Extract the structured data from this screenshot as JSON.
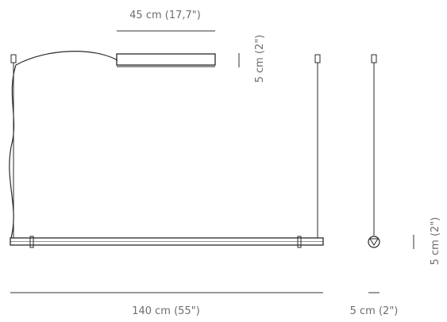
{
  "dimensions": {
    "canopy_width": "45 cm (17,7\")",
    "canopy_height": "5 cm (2\")",
    "total_length": "140 cm (55\")",
    "side_depth": "5 cm (2\")",
    "side_height": "5 cm (2\")"
  },
  "colors": {
    "line": "#2a2a2a",
    "label": "#6e6e6e",
    "background": "#ffffff"
  }
}
